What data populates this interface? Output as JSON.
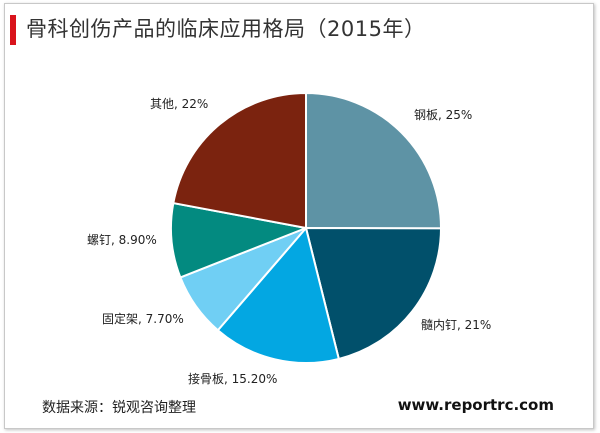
{
  "header": {
    "title": "骨科创伤产品的临床应用格局（2015年）"
  },
  "footer": {
    "source": "数据来源：锐观咨询整理",
    "website": "www.reportrc.com"
  },
  "colors": {
    "title_bar": "#d9141c"
  },
  "chart_data": {
    "type": "pie",
    "title": "骨科创伤产品的临床应用格局（2015年）",
    "start": "12 o'clock, clockwise",
    "slices": [
      {
        "label": "钢板, 25%",
        "name": "钢板",
        "value": 25,
        "color": "#5e93a5"
      },
      {
        "label": "髓内钉, 21%",
        "name": "髓内钉",
        "value": 21,
        "color": "#01506b"
      },
      {
        "label": "接骨板, 15.20%",
        "name": "接骨板",
        "value": 15.2,
        "color": "#03a7e2"
      },
      {
        "label": "固定架, 7.70%",
        "name": "固定架",
        "value": 7.7,
        "color": "#70cff4"
      },
      {
        "label": "螺钉, 8.90%",
        "name": "螺钉",
        "value": 8.9,
        "color": "#038a80"
      },
      {
        "label": "其他, 22%",
        "name": "其他",
        "value": 22,
        "color": "#7b230f"
      }
    ]
  }
}
